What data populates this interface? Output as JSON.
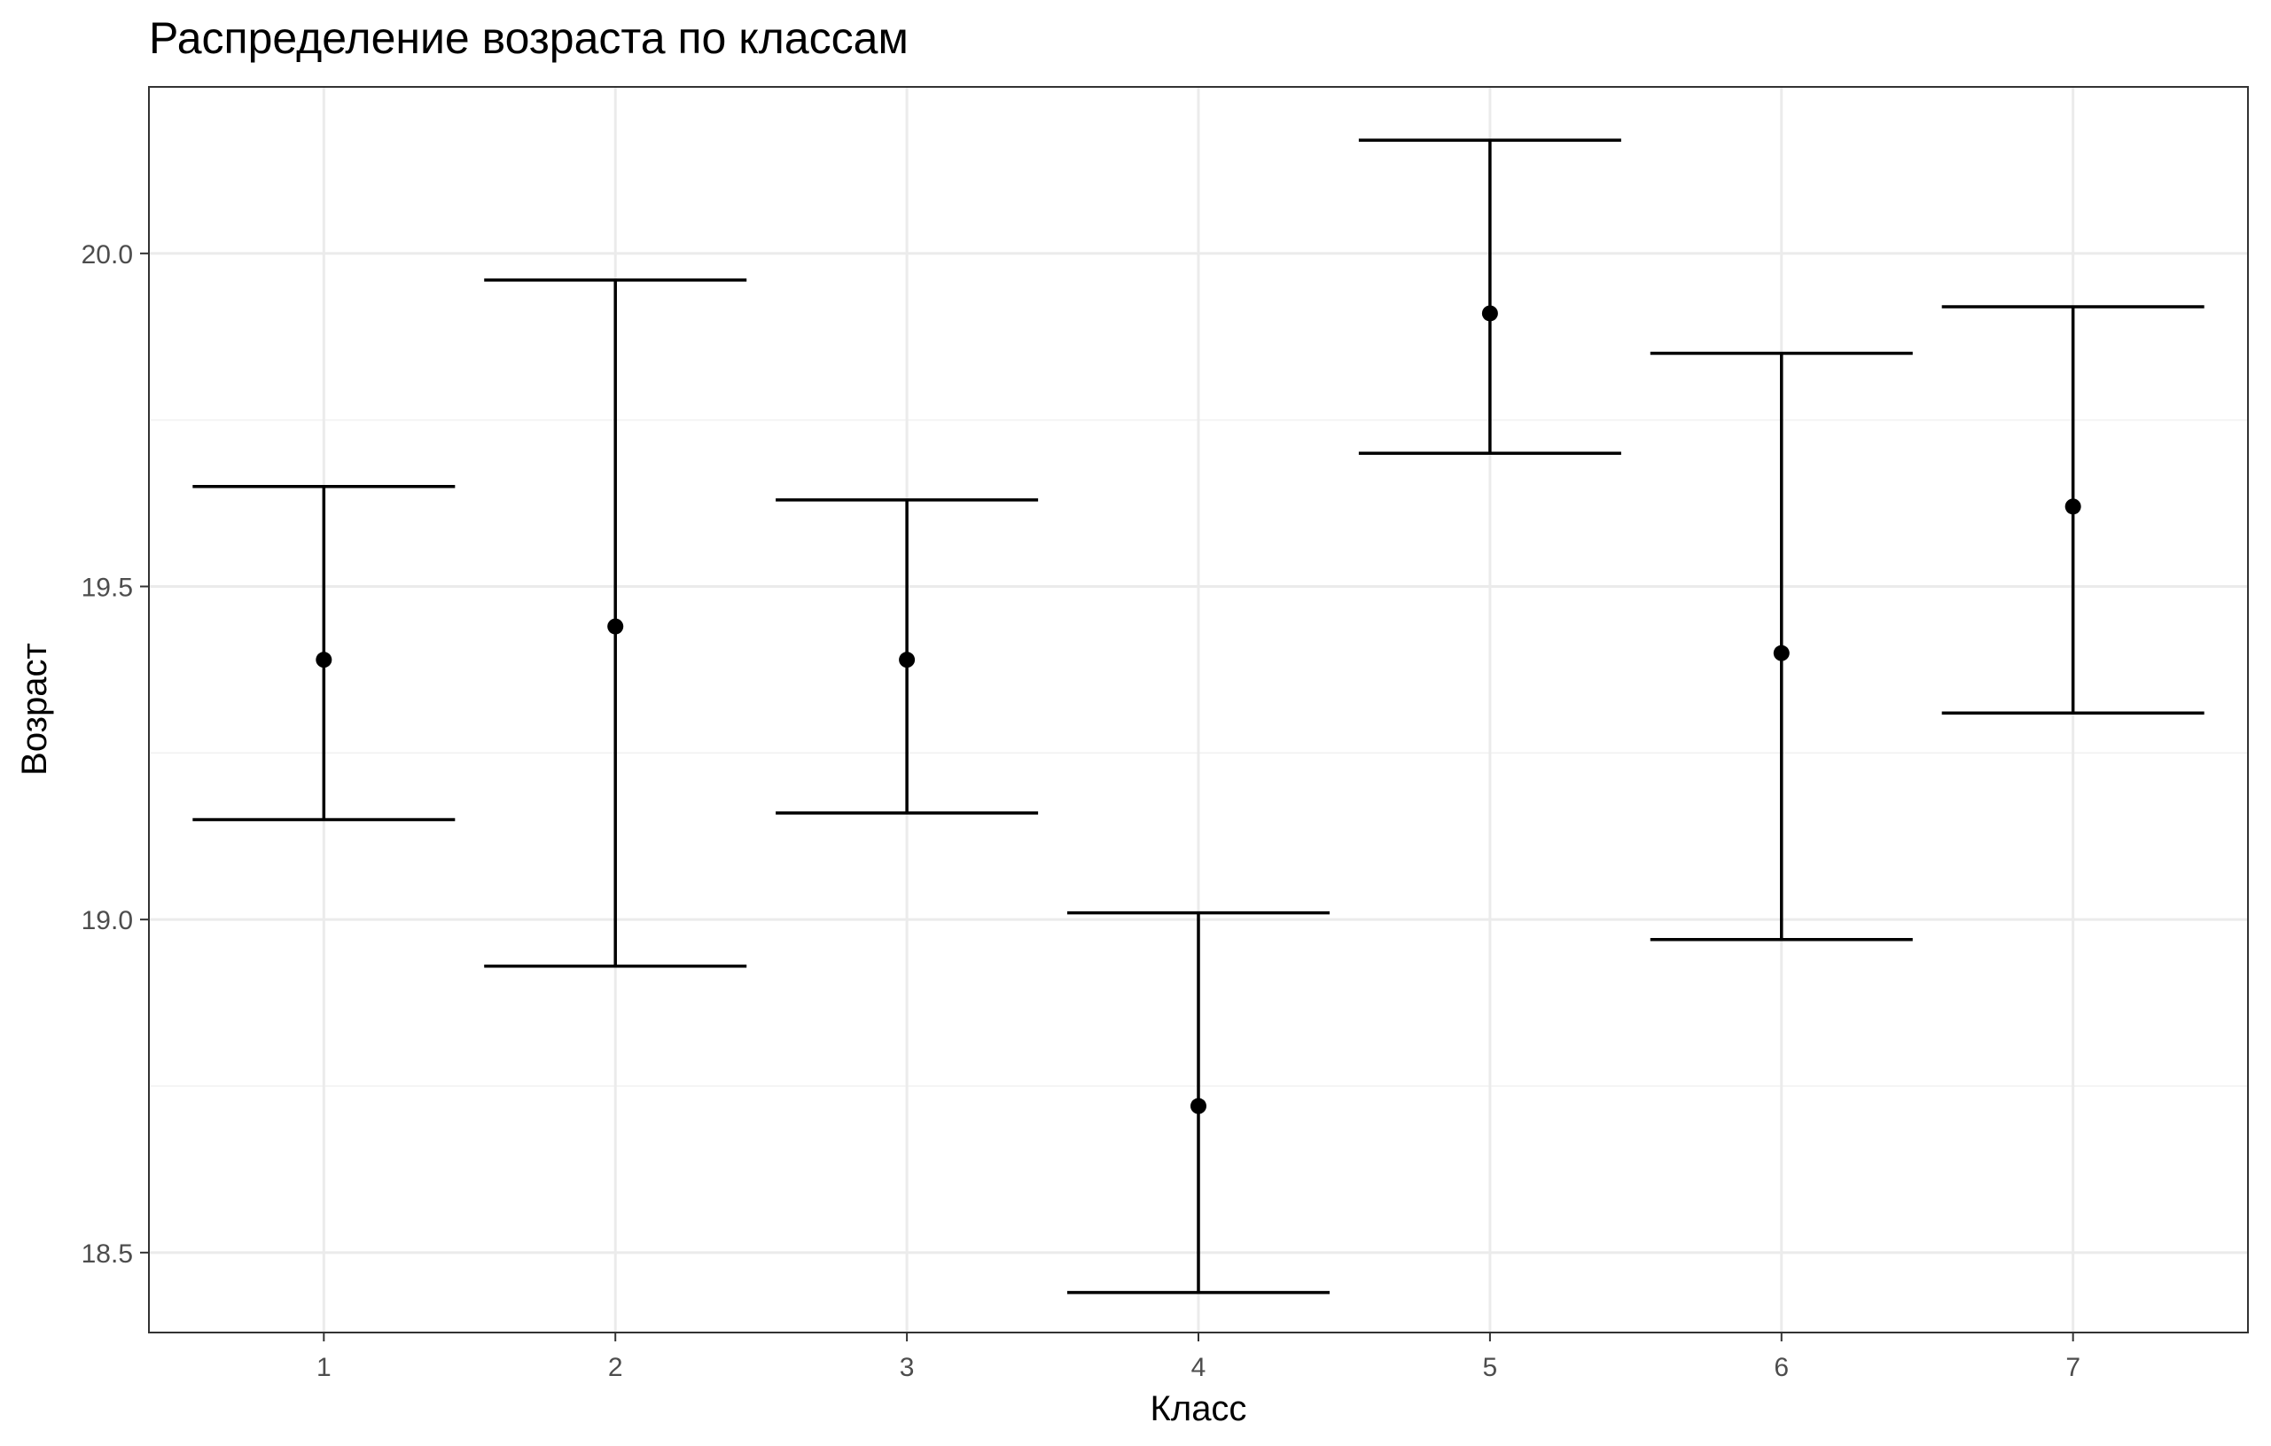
{
  "chart_data": {
    "type": "errorbar",
    "title": "Распределение возраста по классам",
    "xlabel": "Класс",
    "ylabel": "Возраст",
    "categories": [
      "1",
      "2",
      "3",
      "4",
      "5",
      "6",
      "7"
    ],
    "y_ticks": [
      "18.5",
      "19.0",
      "19.5",
      "20.0"
    ],
    "ylim": [
      18.38,
      20.25
    ],
    "grid": true,
    "points": [
      {
        "x": "1",
        "mean": 19.39,
        "lower": 19.15,
        "upper": 19.65
      },
      {
        "x": "2",
        "mean": 19.44,
        "lower": 18.93,
        "upper": 19.96
      },
      {
        "x": "3",
        "mean": 19.39,
        "lower": 19.16,
        "upper": 19.63
      },
      {
        "x": "4",
        "mean": 18.72,
        "lower": 18.44,
        "upper": 19.01
      },
      {
        "x": "5",
        "mean": 19.91,
        "lower": 19.7,
        "upper": 20.17
      },
      {
        "x": "6",
        "mean": 19.4,
        "lower": 18.97,
        "upper": 19.85
      },
      {
        "x": "7",
        "mean": 19.62,
        "lower": 19.31,
        "upper": 19.92
      }
    ]
  }
}
